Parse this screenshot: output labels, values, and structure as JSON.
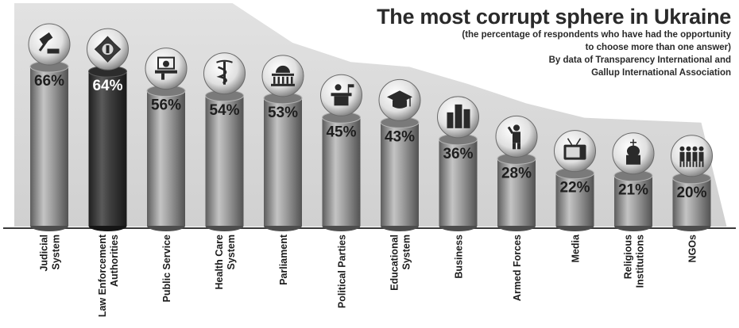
{
  "chart_data": {
    "type": "bar",
    "title": "The most corrupt sphere in Ukraine",
    "subtitle_lines": [
      "(the percentage of respondents who have had the opportunity",
      "to choose more than one answer)",
      "By data of  Transparency International and",
      "Gallup International Association"
    ],
    "xlabel": "",
    "ylabel": "",
    "ylim": [
      0,
      70
    ],
    "grid": false,
    "legend": "none",
    "value_suffix": "%",
    "categories": [
      "Judicial System",
      "Law Enforcement Authorities",
      "Public Service",
      "Health Care System",
      "Parliament",
      "Political Parties",
      "Educational System",
      "Business",
      "Armed Forces",
      "Media",
      "Religious Institutions",
      "NGOs"
    ],
    "category_lines": [
      [
        "Judicial",
        "System"
      ],
      [
        "Law Enforcement",
        "Authorities"
      ],
      [
        "Public Service"
      ],
      [
        "Health Care",
        "System"
      ],
      [
        "Parliament"
      ],
      [
        "Political Parties"
      ],
      [
        "Educational",
        "System"
      ],
      [
        "Business"
      ],
      [
        "Armed Forces"
      ],
      [
        "Media"
      ],
      [
        "Religious",
        "Institutions"
      ],
      [
        "NGOs"
      ]
    ],
    "values": [
      66,
      64,
      56,
      54,
      53,
      45,
      43,
      36,
      28,
      22,
      21,
      20
    ],
    "icons": [
      "gavel-icon",
      "police-badge-icon",
      "official-desk-icon",
      "caduceus-icon",
      "parliament-building-icon",
      "podium-icon",
      "graduation-cap-icon",
      "skyscrapers-icon",
      "saluting-soldier-icon",
      "television-icon",
      "church-icon",
      "people-group-icon"
    ],
    "colors": {
      "bar": "#8e8e8e",
      "highlight_bar": "#404040",
      "value_text": "#1e1e1e",
      "highlight_text": "#ffffff",
      "label_text": "#1c1c1c"
    }
  }
}
